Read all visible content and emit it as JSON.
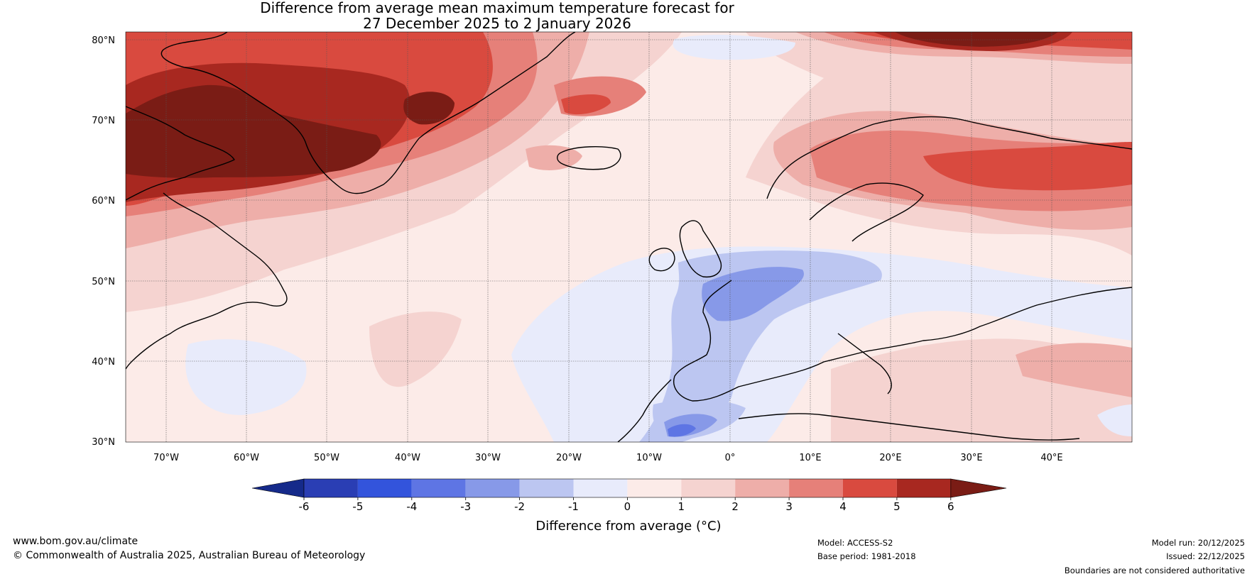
{
  "title_line1": "Difference from average mean maximum temperature forecast for",
  "title_line2": "27 December 2025 to 2 January 2026",
  "map": {
    "lat_labels": [
      "80°N",
      "70°N",
      "60°N",
      "50°N",
      "40°N",
      "30°N"
    ],
    "lon_labels": [
      "70°W",
      "60°W",
      "50°W",
      "40°W",
      "30°W",
      "20°W",
      "10°W",
      "0°",
      "10°E",
      "20°E",
      "30°E",
      "40°E"
    ],
    "extent": {
      "lon_min": -75,
      "lon_max": 50,
      "lat_min": 30,
      "lat_max": 81
    }
  },
  "colorbar": {
    "label": "Difference from average (°C)",
    "ticks": [
      "-6",
      "-5",
      "-4",
      "-3",
      "-2",
      "-1",
      "0",
      "1",
      "2",
      "3",
      "4",
      "5",
      "6"
    ],
    "colors": {
      "below_-6": "#152a8a",
      "-6_-5": "#2a3eb4",
      "-5_-4": "#3354dc",
      "-4_-3": "#5e75e4",
      "-3_-2": "#8799e8",
      "-2_-1": "#bcc6f1",
      "-1_0": "#e8ebfb",
      "0_1": "#fcebe8",
      "1_2": "#f5d3d0",
      "2_3": "#eeaea9",
      "3_4": "#e68079",
      "4_5": "#d94a3f",
      "5_6": "#a82820",
      "above_6": "#7a1c15"
    }
  },
  "footer": {
    "url": "www.bom.gov.au/climate",
    "copyright": "© Commonwealth of Australia 2025, Australian Bureau of Meteorology",
    "model": "Model: ACCESS-S2",
    "base_period": "Base period: 1981-2018",
    "model_run": "Model run: 20/12/2025",
    "issued": "Issued: 22/12/2025",
    "disclaimer": "Boundaries are not considered authoritative"
  }
}
